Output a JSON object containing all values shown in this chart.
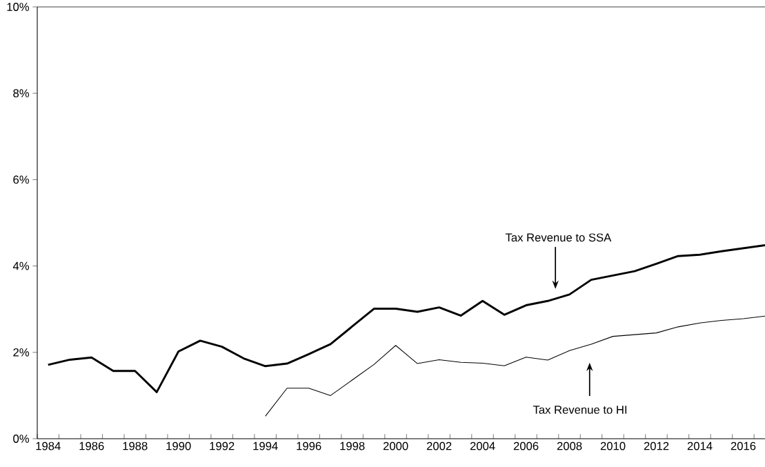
{
  "chart_data": {
    "type": "line",
    "x": [
      1984,
      1985,
      1986,
      1987,
      1988,
      1989,
      1990,
      1991,
      1992,
      1993,
      1994,
      1995,
      1996,
      1997,
      1998,
      1999,
      2000,
      2001,
      2002,
      2003,
      2004,
      2005,
      2006,
      2007,
      2008,
      2009,
      2010,
      2011,
      2012,
      2013,
      2014,
      2015,
      2016,
      2017
    ],
    "series": [
      {
        "color": "#000000",
        "values": [
          1.71,
          1.83,
          1.88,
          1.57,
          1.57,
          1.08,
          2.02,
          2.27,
          2.13,
          1.86,
          1.68,
          1.74,
          1.96,
          2.19,
          2.6,
          3.01,
          3.01,
          2.94,
          3.04,
          2.85,
          3.19,
          2.87,
          3.09,
          3.19,
          3.34,
          3.68,
          3.78,
          3.88,
          4.05,
          4.23,
          4.26,
          4.34,
          4.41,
          4.48
        ]
      },
      {
        "color": "#000000",
        "values": [
          null,
          null,
          null,
          null,
          null,
          null,
          null,
          null,
          null,
          null,
          0.52,
          1.17,
          1.17,
          1.0,
          1.36,
          1.72,
          2.16,
          1.74,
          1.83,
          1.77,
          1.75,
          1.69,
          1.89,
          1.82,
          2.04,
          2.19,
          2.37,
          2.41,
          2.45,
          2.59,
          2.68,
          2.74,
          2.78,
          2.84
        ]
      }
    ],
    "xlim": [
      1983.5,
      2017
    ],
    "xticks": [
      1984,
      1986,
      1988,
      1990,
      1992,
      1994,
      1996,
      1998,
      2000,
      2002,
      2004,
      2006,
      2008,
      2010,
      2012,
      2014,
      2016
    ],
    "ylim": [
      0,
      10
    ],
    "yticks": [
      {
        "value": 0,
        "label": "0%"
      },
      {
        "value": 2,
        "label": "2%"
      },
      {
        "value": 4,
        "label": "4%"
      },
      {
        "value": 6,
        "label": "6%"
      },
      {
        "value": 8,
        "label": "8%"
      },
      {
        "value": 10,
        "label": "10%"
      }
    ],
    "annotations": [
      "Tax Revenue to SSA",
      "Tax Revenue to HI"
    ],
    "grid": false,
    "marker": "none",
    "line_style": "solid"
  }
}
